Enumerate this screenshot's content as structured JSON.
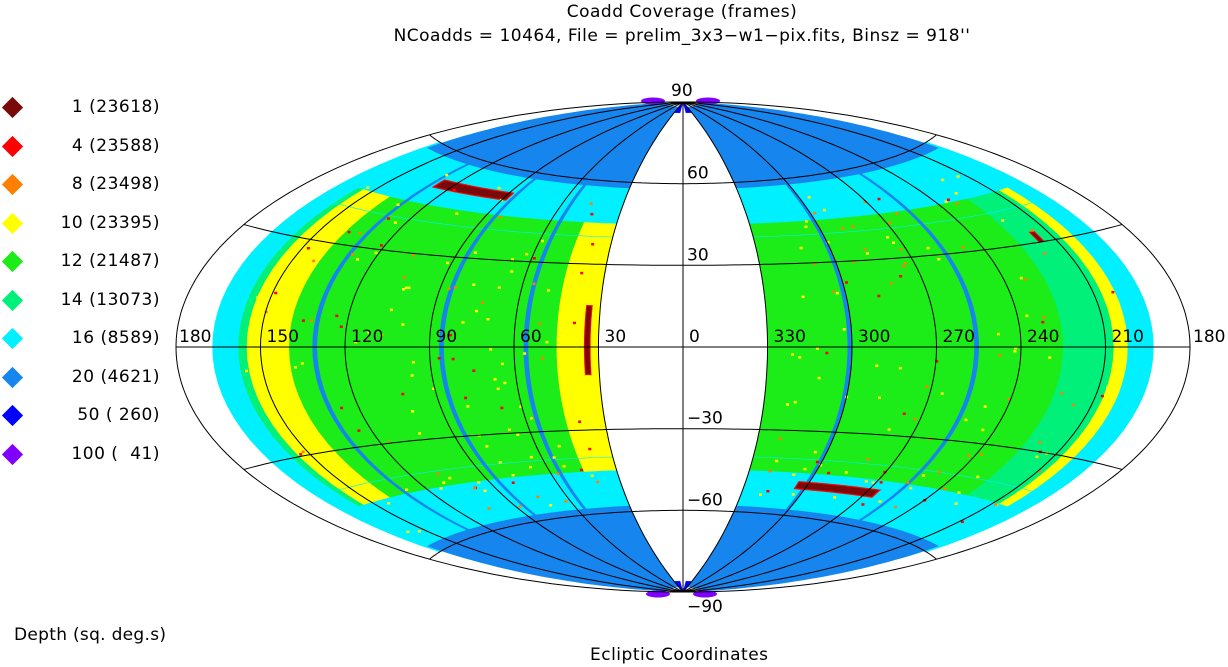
{
  "chart_data": {
    "type": "heatmap",
    "projection": "aitoff",
    "title": "Coadd Coverage (frames)",
    "subtitle": "NCoadds = 10464, File = prelim_3x3−w1−pix.fits, Binsz = 918''",
    "xlabel": "Ecliptic Coordinates",
    "legend_title": "Depth (sq. deg.s)",
    "legend_placement": "left",
    "legend": [
      {
        "label": "  1 (23618)",
        "depth": 1,
        "count": 23618,
        "color": "#7a0a0a"
      },
      {
        "label": "  4 (23588)",
        "depth": 4,
        "count": 23588,
        "color": "#ff0000"
      },
      {
        "label": "  8 (23498)",
        "depth": 8,
        "count": 23498,
        "color": "#ff8000"
      },
      {
        "label": " 10 (23395)",
        "depth": 10,
        "count": 23395,
        "color": "#ffff00"
      },
      {
        "label": " 12 (21487)",
        "depth": 12,
        "count": 21487,
        "color": "#1cec18"
      },
      {
        "label": " 14 (13073)",
        "depth": 14,
        "count": 13073,
        "color": "#00f07a"
      },
      {
        "label": " 16 (8589)",
        "depth": 16,
        "count": 8589,
        "color": "#00f0ff"
      },
      {
        "label": " 20 (4621)",
        "depth": 20,
        "count": 4621,
        "color": "#1685ee"
      },
      {
        "label": " 50 ( 260)",
        "depth": 50,
        "count": 260,
        "color": "#0000ff"
      },
      {
        "label": "100 (  41)",
        "depth": 100,
        "count": 41,
        "color": "#7f00ff"
      }
    ],
    "lon_ticks": [
      {
        "value": 180,
        "label": "180"
      },
      {
        "value": 150,
        "label": "150"
      },
      {
        "value": 120,
        "label": "120"
      },
      {
        "value": 90,
        "label": "90"
      },
      {
        "value": 60,
        "label": "60"
      },
      {
        "value": 30,
        "label": "30"
      },
      {
        "value": 0,
        "label": "0"
      },
      {
        "value": -30,
        "label": "330"
      },
      {
        "value": -60,
        "label": "300"
      },
      {
        "value": -90,
        "label": "270"
      },
      {
        "value": -120,
        "label": "240"
      },
      {
        "value": -150,
        "label": "210"
      },
      {
        "value": -180,
        "label": "180"
      }
    ],
    "lat_ticks": [
      {
        "value": 90,
        "label": "90"
      },
      {
        "value": 60,
        "label": "60"
      },
      {
        "value": 30,
        "label": "30"
      },
      {
        "value": -30,
        "label": "−30"
      },
      {
        "value": -60,
        "label": "−60"
      },
      {
        "value": -90,
        "label": "−90"
      }
    ],
    "grid": true,
    "coverage_lon_range": {
      "left": [
        30,
        165
      ],
      "right": [
        195,
        330
      ]
    },
    "bands": [
      {
        "lon": [
          30,
          45
        ],
        "depth": 10
      },
      {
        "lon": [
          45,
          90
        ],
        "depth": 12
      },
      {
        "lon": [
          90,
          140
        ],
        "depth": 12
      },
      {
        "lon": [
          140,
          155
        ],
        "depth": 10
      },
      {
        "lon": [
          155,
          165
        ],
        "depth": 14
      },
      {
        "lon": [
          315,
          330
        ],
        "depth": 12
      },
      {
        "lon": [
          270,
          315
        ],
        "depth": 12
      },
      {
        "lon": [
          225,
          270
        ],
        "depth": 12
      },
      {
        "lon": [
          207,
          225
        ],
        "depth": 14
      },
      {
        "lon": [
          195,
          207
        ],
        "depth": 10
      }
    ]
  }
}
